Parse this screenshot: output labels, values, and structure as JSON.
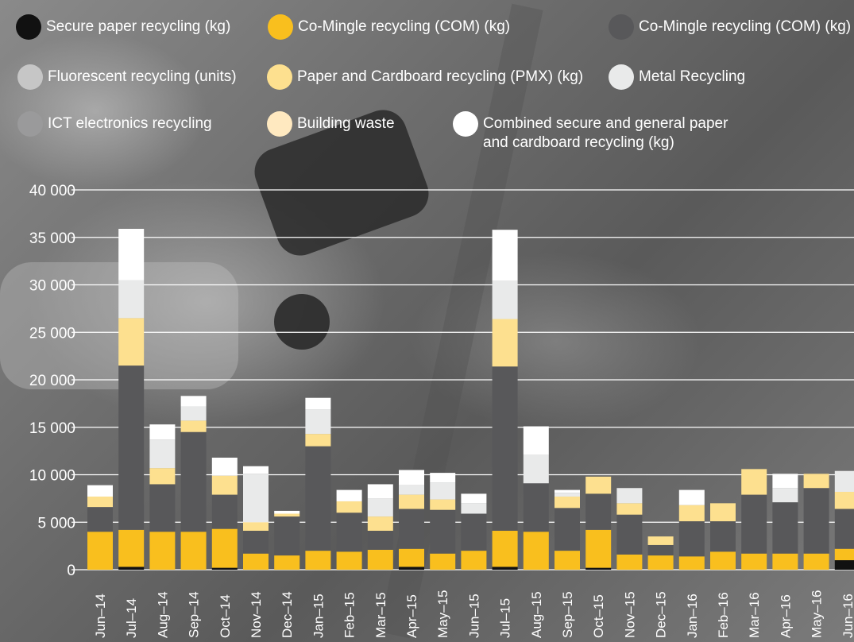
{
  "chart_data": {
    "type": "bar",
    "stacked": true,
    "categories": [
      "Jun–14",
      "Jul–14",
      "Aug–14",
      "Sep–14",
      "Oct–14",
      "Nov–14",
      "Dec–14",
      "Jan–15",
      "Feb–15",
      "Mar–15",
      "Apr–15",
      "May–15",
      "Jun–15",
      "Jul–15",
      "Aug–15",
      "Sep–15",
      "Oct–15",
      "Nov–15",
      "Dec–15",
      "Jan–16",
      "Feb–16",
      "Mar–16",
      "Apr–16",
      "May–16",
      "Jun–16"
    ],
    "ylim": [
      0,
      40000
    ],
    "yticks": [
      0,
      5000,
      10000,
      15000,
      20000,
      25000,
      30000,
      35000,
      40000
    ],
    "ytick_labels": [
      "0",
      "5 000",
      "10 000",
      "15 000",
      "20 000",
      "25 000",
      "30 000",
      "35 000",
      "40 000"
    ],
    "grid": true,
    "legend_position": "top",
    "series": [
      {
        "name": "Secure paper recycling (kg)",
        "color": "#111111",
        "values": [
          0,
          300,
          0,
          0,
          200,
          0,
          0,
          0,
          0,
          0,
          300,
          0,
          0,
          300,
          0,
          0,
          200,
          0,
          0,
          0,
          0,
          0,
          0,
          0,
          1000
        ]
      },
      {
        "name": "Co-Mingle recycling (COM) (kg)",
        "color": "#f9bf1e",
        "values": [
          4000,
          3900,
          4000,
          4000,
          4100,
          1700,
          1500,
          2000,
          1900,
          2100,
          1900,
          1700,
          2000,
          3800,
          4000,
          2000,
          4000,
          1600,
          1500,
          1400,
          1900,
          1700,
          1700,
          1700,
          1200
        ]
      },
      {
        "name": "Co-Mingle recycling (COM) (kg)",
        "color": "#58585a",
        "values": [
          2600,
          17300,
          5000,
          10500,
          3600,
          2400,
          4100,
          11000,
          4100,
          2000,
          4200,
          4600,
          3900,
          17300,
          5100,
          4500,
          3800,
          4200,
          1100,
          3700,
          3200,
          6200,
          5400,
          6900,
          4200
        ]
      },
      {
        "name": "Fluorescent recycling (units)",
        "color": "#c6c6c6",
        "values": [
          0,
          0,
          0,
          0,
          0,
          0,
          0,
          0,
          0,
          0,
          0,
          0,
          0,
          0,
          0,
          0,
          0,
          0,
          0,
          0,
          0,
          0,
          0,
          0,
          0
        ]
      },
      {
        "name": "Paper and Cardboard recycling (PMX) (kg)",
        "color": "#fde08f",
        "values": [
          1100,
          5000,
          1700,
          1200,
          2000,
          900,
          300,
          1300,
          1200,
          1500,
          1500,
          1100,
          0,
          5000,
          0,
          1200,
          1800,
          1200,
          900,
          1700,
          1900,
          2700,
          0,
          1500,
          1800
        ]
      },
      {
        "name": "Metal Recycling",
        "color": "#e9eaea",
        "values": [
          0,
          4000,
          3000,
          1500,
          0,
          5100,
          0,
          2600,
          0,
          1900,
          1000,
          1800,
          1100,
          4000,
          3000,
          400,
          0,
          1600,
          0,
          0,
          0,
          0,
          1500,
          0,
          2200
        ]
      },
      {
        "name": "ICT electronics recycling",
        "color": "#9a9a9b",
        "values": [
          0,
          0,
          0,
          0,
          0,
          0,
          0,
          0,
          0,
          0,
          0,
          0,
          0,
          0,
          0,
          0,
          0,
          0,
          0,
          0,
          0,
          0,
          0,
          0,
          0
        ]
      },
      {
        "name": "Building waste",
        "color": "#ffe9c0",
        "values": [
          0,
          0,
          0,
          0,
          0,
          0,
          0,
          0,
          0,
          0,
          0,
          0,
          0,
          0,
          0,
          0,
          0,
          0,
          0,
          0,
          0,
          0,
          0,
          0,
          0
        ]
      },
      {
        "name": "Combined secure and general paper\nand cardboard recycling (kg)",
        "color": "#ffffff",
        "values": [
          1200,
          5400,
          1600,
          1100,
          1900,
          800,
          300,
          1200,
          1200,
          1500,
          1600,
          1000,
          1000,
          5400,
          3000,
          300,
          0,
          0,
          0,
          1600,
          0,
          0,
          1500,
          0,
          0
        ]
      }
    ]
  }
}
